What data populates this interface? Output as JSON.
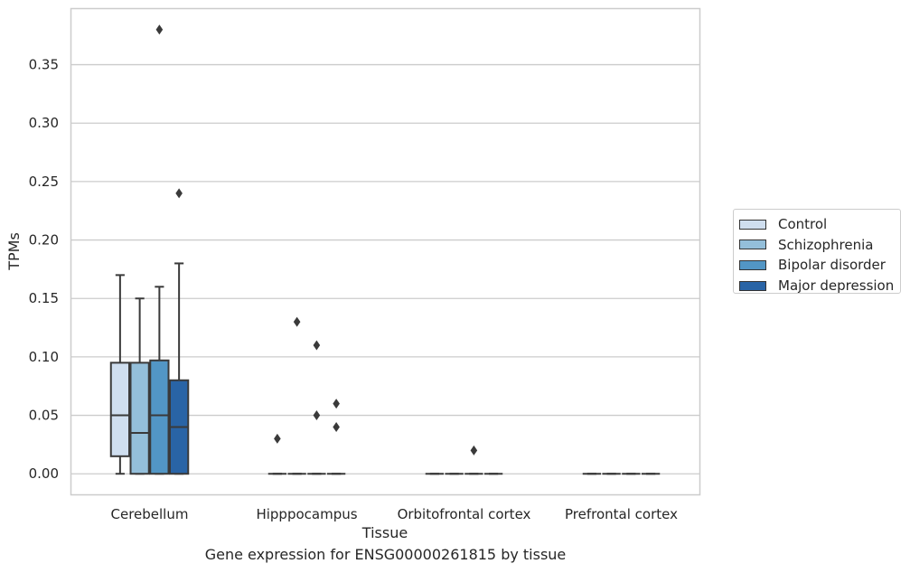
{
  "caption": "Gene expression for ENSG00000261815 by tissue",
  "colors": {
    "Control": "#cfdeef",
    "Schizophrenia": "#94bfda",
    "Bipolar disorder": "#5296c5",
    "Major depression": "#2964a6",
    "grid": "#cccccc",
    "line": "#3a3a3a"
  },
  "chart_data": {
    "type": "boxplot",
    "xlabel": "Tissue",
    "ylabel": "TPMs",
    "ylim": [
      -0.018,
      0.398
    ],
    "yticks": [
      "0.00",
      "0.05",
      "0.10",
      "0.15",
      "0.20",
      "0.25",
      "0.30",
      "0.35"
    ],
    "categories": [
      "Cerebellum",
      "Hipppocampus",
      "Orbitofrontal cortex",
      "Prefrontal cortex"
    ],
    "legend_position": "right",
    "grid": true,
    "series": [
      {
        "name": "Control",
        "boxes": [
          {
            "whisker_low": 0.0,
            "q1": 0.015,
            "median": 0.05,
            "q3": 0.095,
            "whisker_high": 0.17,
            "outliers": []
          },
          {
            "whisker_low": 0.0,
            "q1": 0.0,
            "median": 0.0,
            "q3": 0.0,
            "whisker_high": 0.0,
            "outliers": [
              0.03
            ]
          },
          {
            "whisker_low": 0.0,
            "q1": 0.0,
            "median": 0.0,
            "q3": 0.0,
            "whisker_high": 0.0,
            "outliers": []
          },
          {
            "whisker_low": 0.0,
            "q1": 0.0,
            "median": 0.0,
            "q3": 0.0,
            "whisker_high": 0.0,
            "outliers": []
          }
        ]
      },
      {
        "name": "Schizophrenia",
        "boxes": [
          {
            "whisker_low": 0.0,
            "q1": 0.0,
            "median": 0.035,
            "q3": 0.095,
            "whisker_high": 0.15,
            "outliers": []
          },
          {
            "whisker_low": 0.0,
            "q1": 0.0,
            "median": 0.0,
            "q3": 0.0,
            "whisker_high": 0.0,
            "outliers": [
              0.13
            ]
          },
          {
            "whisker_low": 0.0,
            "q1": 0.0,
            "median": 0.0,
            "q3": 0.0,
            "whisker_high": 0.0,
            "outliers": []
          },
          {
            "whisker_low": 0.0,
            "q1": 0.0,
            "median": 0.0,
            "q3": 0.0,
            "whisker_high": 0.0,
            "outliers": []
          }
        ]
      },
      {
        "name": "Bipolar disorder",
        "boxes": [
          {
            "whisker_low": 0.0,
            "q1": 0.0,
            "median": 0.05,
            "q3": 0.097,
            "whisker_high": 0.16,
            "outliers": [
              0.38
            ]
          },
          {
            "whisker_low": 0.0,
            "q1": 0.0,
            "median": 0.0,
            "q3": 0.0,
            "whisker_high": 0.0,
            "outliers": [
              0.11,
              0.05
            ]
          },
          {
            "whisker_low": 0.0,
            "q1": 0.0,
            "median": 0.0,
            "q3": 0.0,
            "whisker_high": 0.0,
            "outliers": [
              0.02
            ]
          },
          {
            "whisker_low": 0.0,
            "q1": 0.0,
            "median": 0.0,
            "q3": 0.0,
            "whisker_high": 0.0,
            "outliers": []
          }
        ]
      },
      {
        "name": "Major depression",
        "boxes": [
          {
            "whisker_low": 0.0,
            "q1": 0.0,
            "median": 0.04,
            "q3": 0.08,
            "whisker_high": 0.18,
            "outliers": [
              0.24
            ]
          },
          {
            "whisker_low": 0.0,
            "q1": 0.0,
            "median": 0.0,
            "q3": 0.0,
            "whisker_high": 0.0,
            "outliers": [
              0.06,
              0.04
            ]
          },
          {
            "whisker_low": 0.0,
            "q1": 0.0,
            "median": 0.0,
            "q3": 0.0,
            "whisker_high": 0.0,
            "outliers": []
          },
          {
            "whisker_low": 0.0,
            "q1": 0.0,
            "median": 0.0,
            "q3": 0.0,
            "whisker_high": 0.0,
            "outliers": []
          }
        ]
      }
    ]
  }
}
